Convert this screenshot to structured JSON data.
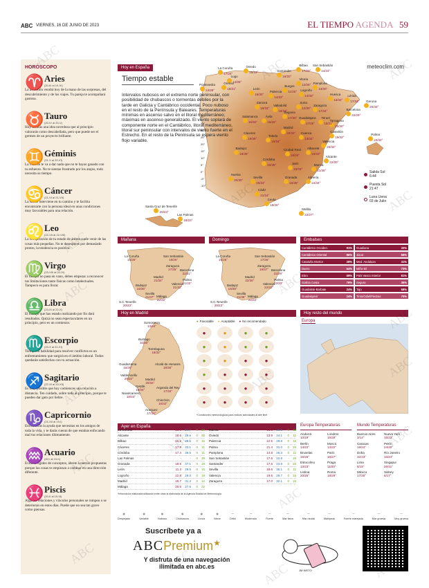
{
  "header": {
    "logo": "ABC",
    "date": "VIERNES, 16 DE JUNIO DE 2023",
    "section": "EL TIEMPO",
    "subsection": "AGENDA",
    "page": "59"
  },
  "horoscope": {
    "title": "HORÓSCOPO",
    "signs": [
      {
        "glyph": "♈",
        "name": "Aries",
        "dates": "(20-III al 19-IV)",
        "text": "La diversión vendrá hoy de la mano de las sorpresas, del descubrimiento y de los viajes. Tu pareja te acompañará gustosa."
      },
      {
        "glyph": "♉",
        "name": "Tauro",
        "dates": "(20-IV al 20-V)",
        "text": "Hoy tendrás una idea novedosa que al principio valorarás como descabellada, pero que puede ser el germen de un proyecto brillante."
      },
      {
        "glyph": "♊",
        "name": "Géminis",
        "dates": "(21-V al 20-VI)",
        "text": "La vida no te va a dar nada que no te hayas ganado con tu esfuerzo. No te sientas frustrado por los atajos, todo necesita su tiempo."
      },
      {
        "glyph": "♋",
        "name": "Cáncer",
        "dates": "(21-VI al 21-VII)",
        "text": "La suerte interviene en tu camino y te facilita encontrarte con la persona ideal en unas condiciones muy favorables para una relación."
      },
      {
        "glyph": "♌",
        "name": "Leo",
        "dates": "(22-VII al 22-VIII)",
        "text": "La recuperación de tu estado de ánimo suele venir de las cosas más pequeñas. No te desesperes por demasiado pronto, la tendencia es positiva."
      },
      {
        "glyph": "♍",
        "name": "Virgo",
        "dates": "(23-VIII al 22-IX)",
        "text": "El tiempo no pasa en vano, debes empezar a reconocer tus limitaciones tanto físicas como intelectuales. Tampoco es para llorar."
      },
      {
        "glyph": "♎",
        "name": "Libra",
        "dates": "(23-IX al 22-X)",
        "text": "El trabajo que has estado realizando por fin dará resultados. Quizá no sean espectaculares en un principio, pero es un comienzo."
      },
      {
        "glyph": "♏",
        "name": "Escorpio",
        "dates": "(23-X al 21-XI)",
        "text": "Tiempo tu habilidad para resolver conflictos es un enfrentamiento que surgirá en el ámbito laboral. Todos quedarán satisfechos con tu actuación."
      },
      {
        "glyph": "♐",
        "name": "Sagitario",
        "dates": "(22-XI al 20-XII)",
        "text": "Es muy posible que hoy comiences una relación a distancia. Ten cuidado, sobre todo al principio, porque te pueden dar gato por liebre."
      },
      {
        "glyph": "♑",
        "name": "Capricornio",
        "dates": "(21-XII al 19-I)",
        "text": "Encontrarás la ayuda que necesitas en los amigos de toda la vida, y te darás cuenta de que estabas enfocando mal tus relaciones últimamente."
      },
      {
        "glyph": "♒",
        "name": "Acuario",
        "dates": "(20-I al 19-II)",
        "text": "Evita la rigidez de conceptos, ábrete a nuevas propuestas porque las cosas te empiezan a caminar en una dirección diferente."
      },
      {
        "glyph": "♓",
        "name": "Piscis",
        "dates": "(20-II al 19-III)",
        "text": "Algunas relaciones y vínculos personales se rompen o se deterioran en estos días. Puede que no sea tan grave como piensas."
      }
    ]
  },
  "today": {
    "label": "Hoy en España",
    "title": "Tiempo estable",
    "desc": "Intervalos nubosos en el extremo norte peninsular, con posibilidad de chubascos o tormentas débiles por la tarde en Galicia y Cantábrico occidental. Poco nuboso en el resto de la Península y Baleares. Temperaturas mínimas en ascenso salvo en el litoral mediterráneo; máximas en ascenso generalizado. El viento soplará de componente norte en el Cantábrico, litoral mediterráneo, litoral sur peninsular con intervalos de viento fuerte en el Estrecho. En el resto de la Península se espera viento flojo variable.",
    "source": "meteoclim.com",
    "scale": [
      "40°",
      "35°",
      "30°",
      "25°",
      "20°",
      "15°",
      "10°",
      "5°",
      "0°",
      "-5°",
      "-10°"
    ],
    "cities": [
      {
        "name": "La Coruña",
        "t": "17/24°"
      },
      {
        "name": "Oviedo",
        "t": "15/19°"
      },
      {
        "name": "Bilbao",
        "t": "17/23°"
      },
      {
        "name": "San Sebastián",
        "t": "14/24°"
      },
      {
        "name": "Santander",
        "t": "16/20°"
      },
      {
        "name": "Lugo",
        "t": "14/26°"
      },
      {
        "name": "Pontevedra",
        "t": "24/28°"
      },
      {
        "name": "Orense",
        "t": "18/31°"
      },
      {
        "name": "León",
        "t": "16/30°"
      },
      {
        "name": "Palencia",
        "t": "14/32°"
      },
      {
        "name": "Burgos",
        "t": "11/30°"
      },
      {
        "name": "Vitoria",
        "t": "12/26°"
      },
      {
        "name": "Logroño",
        "t": "14/30°"
      },
      {
        "name": "Pamplona",
        "t": "13/30°"
      },
      {
        "name": "Huesca",
        "t": "16/34°"
      },
      {
        "name": "Lérida",
        "t": "17/34°"
      },
      {
        "name": "Gerona",
        "t": "20/34°"
      },
      {
        "name": "Zamora",
        "t": "18/32°"
      },
      {
        "name": "Valladolid",
        "t": "18/33°"
      },
      {
        "name": "Soria",
        "t": "12/30°"
      },
      {
        "name": "Zaragoza",
        "t": "17/34°"
      },
      {
        "name": "Barcelona",
        "t": "22/29°"
      },
      {
        "name": "Segovia",
        "t": "17/30°"
      },
      {
        "name": "Tarragona",
        "t": "20/30°"
      },
      {
        "name": "Salamanca",
        "t": "16/32°"
      },
      {
        "name": "Ávila",
        "t": "16/29°"
      },
      {
        "name": "Guadalajara",
        "t": "17/35°"
      },
      {
        "name": "Teruel",
        "t": "15/31°"
      },
      {
        "name": "Madrid",
        "t": "20/34°"
      },
      {
        "name": "Castellón",
        "t": "19/32°"
      },
      {
        "name": "Palma",
        "t": "22/32°"
      },
      {
        "name": "Cáceres",
        "t": "19/36°"
      },
      {
        "name": "Toledo",
        "t": "16/34°"
      },
      {
        "name": "Cuenca",
        "t": "13/32°"
      },
      {
        "name": "Valencia",
        "t": "20/32°"
      },
      {
        "name": "Badajoz",
        "t": "19/35°"
      },
      {
        "name": "Ciudad Real",
        "t": "18/34°"
      },
      {
        "name": "Albacete",
        "t": "15/33°"
      },
      {
        "name": "Alicante",
        "t": "22/30°"
      },
      {
        "name": "Córdoba",
        "t": "22/35°"
      },
      {
        "name": "Jaén",
        "t": "23/33°"
      },
      {
        "name": "Murcia",
        "t": "21/36°"
      },
      {
        "name": "Huelva",
        "t": "20/30°"
      },
      {
        "name": "Sevilla",
        "t": "20/34°"
      },
      {
        "name": "Granada",
        "t": "22/35°"
      },
      {
        "name": "Almería",
        "t": "24/34°"
      },
      {
        "name": "Cádiz",
        "t": "21/24°"
      },
      {
        "name": "Ceuta",
        "t": "18/26°"
      },
      {
        "name": "Melilla",
        "t": "22/27°"
      },
      {
        "name": "Santa Cruz de Tenerife",
        "t": "20/23°"
      },
      {
        "name": "Las Palmas",
        "t": "18/23°"
      }
    ],
    "astro": {
      "sunrise_label": "Salida Sol",
      "sunrise": "6:44",
      "sunset_label": "Puesta Sol",
      "sunset": "21:47",
      "moon_label": "Luna Llena",
      "moon": "03 de Julio"
    }
  },
  "manana": {
    "label": "Mañana",
    "cities": [
      {
        "name": "La Coruña",
        "t": "15/26°"
      },
      {
        "name": "San Sebastián",
        "t": "19/26°"
      },
      {
        "name": "Zaragoza",
        "t": "17/36°"
      },
      {
        "name": "Barcelona",
        "t": "22/31°"
      },
      {
        "name": "Madrid",
        "t": "21/34°"
      },
      {
        "name": "Valencia",
        "t": "21/32°"
      },
      {
        "name": "Palma",
        "t": "21/32°"
      },
      {
        "name": "Badajoz",
        "t": "19/36°"
      },
      {
        "name": "Sevilla",
        "t": "21/37°"
      },
      {
        "name": "Málaga",
        "t": "22/32°"
      },
      {
        "name": "S.C.Tenerife",
        "t": "20/23°"
      }
    ]
  },
  "domingo": {
    "label": "Domingo",
    "cities": [
      {
        "name": "La Coruña",
        "t": "16/26°"
      },
      {
        "name": "San Sebastián",
        "t": "17/26°"
      },
      {
        "name": "Zaragoza",
        "t": "18/37°"
      },
      {
        "name": "Barcelona",
        "t": "22/29°"
      },
      {
        "name": "Madrid",
        "t": "22/36°"
      },
      {
        "name": "Valencia",
        "t": "22/32°"
      },
      {
        "name": "Palma",
        "t": "22/33°"
      },
      {
        "name": "Badajoz",
        "t": "19/38°"
      },
      {
        "name": "Sevilla",
        "t": "21/38°"
      },
      {
        "name": "Málaga",
        "t": "22/34°"
      },
      {
        "name": "S.C.Tenerife",
        "t": "20/23°"
      }
    ]
  },
  "embalses": {
    "label": "Embalses",
    "rows": [
      {
        "name": "Cantábrico Occiden.",
        "pct": "91%"
      },
      {
        "name": "Guadiana",
        "pct": "33%"
      },
      {
        "name": "Cantábrico Oriental",
        "pct": "86%"
      },
      {
        "name": "Júcar",
        "pct": "58%"
      },
      {
        "name": "Cataluña Interior",
        "pct": "28%"
      },
      {
        "name": "Med. Andaluza",
        "pct": "31%"
      },
      {
        "name": "Duero",
        "pct": "64%"
      },
      {
        "name": "Miño-Sil",
        "pct": "73%"
      },
      {
        "name": "Ebro",
        "pct": "59%"
      },
      {
        "name": "País Vasco Interior",
        "pct": "81%"
      },
      {
        "name": "Galicia Costa",
        "pct": "79%"
      },
      {
        "name": "Segura",
        "pct": "36%"
      },
      {
        "name": "Guadalete-Barbate",
        "pct": "24%"
      },
      {
        "name": "Tajo",
        "pct": "58%"
      },
      {
        "name": "Guadalquivir",
        "pct": "24%"
      },
      {
        "name": "Tinto/Odiel/Piedras",
        "pct": "70%"
      }
    ]
  },
  "madrid": {
    "label": "Hoy en Madrid",
    "legend": {
      "fav": "Favorable",
      "acc": "Aceptable",
      "no": "No recomendado"
    },
    "cities": [
      {
        "name": "Somosierra",
        "t": "13/24°"
      },
      {
        "name": "Buitrago",
        "t": "16/30°"
      },
      {
        "name": "Torrelaguna",
        "t": "18/32°"
      },
      {
        "name": "Guadarrama",
        "t": "16/30°"
      },
      {
        "name": "Alcalá de Henares",
        "t": "18/35°"
      },
      {
        "name": "Valdemorillo",
        "t": "20/32°"
      },
      {
        "name": "Madrid",
        "t": "20/34°"
      },
      {
        "name": "Getafe",
        "t": "19/34°"
      },
      {
        "name": "Arganda del Rey",
        "t": "17/34°"
      },
      {
        "name": "Navalcarnero",
        "t": "18/34°"
      },
      {
        "name": "Chinchón",
        "t": "16/32°"
      },
      {
        "name": "Aranjuez",
        "t": "17/34°"
      }
    ],
    "activities": [
      "a",
      "y",
      "g",
      "g",
      "g",
      "y",
      "g",
      "g",
      "g",
      "y",
      "n",
      "n",
      "g",
      "a",
      "a",
      "a",
      "a",
      "a",
      "a",
      "a",
      "n",
      "a",
      "a",
      "n"
    ],
    "note": "*Condiciones meteorológicas para realizar actividades al aire libre"
  },
  "world": {
    "label": "Hoy resto del mundo",
    "sub": "Europa"
  },
  "ayer": {
    "label": "Ayer en España",
    "head": [
      "ºC Máx",
      "ºC Mín",
      "Lluvia l/m²",
      "Racha Viento"
    ],
    "left": [
      {
        "c": "La Coruña",
        "mx": "16.0",
        "mn": "24.7",
        "r": "0",
        "w": "19"
      },
      {
        "c": "Alicante",
        "mx": "18.6",
        "mn": "29.6",
        "r": "0",
        "w": "30"
      },
      {
        "c": "Bilbao",
        "mx": "16.2",
        "mn": "25.6",
        "r": "0",
        "w": "15"
      },
      {
        "c": "Cáceres",
        "mx": "17.8",
        "mn": "33.1",
        "r": "0",
        "w": "11"
      },
      {
        "c": "Córdoba",
        "mx": "17.4",
        "mn": "36.5",
        "r": "0",
        "w": "11"
      },
      {
        "c": "Las Palmas",
        "mx": "-",
        "mn": "-",
        "r": "0",
        "w": "39"
      },
      {
        "c": "Granada",
        "mx": "18.5",
        "mn": "37.1",
        "r": "0",
        "w": "19"
      },
      {
        "c": "León",
        "mx": "11.3",
        "mn": "29.5",
        "r": "0",
        "w": "15"
      },
      {
        "c": "Logroño",
        "mx": "12.8",
        "mn": "29.0",
        "r": "0",
        "w": "19"
      },
      {
        "c": "Madrid",
        "mx": "15.7",
        "mn": "31.3",
        "r": "0",
        "w": "12"
      },
      {
        "c": "Málaga",
        "mx": "20.5",
        "mn": "27.6",
        "r": "0",
        "w": "22"
      }
    ],
    "right": [
      {
        "c": "Murcia",
        "mx": "16.5",
        "mn": "34.5",
        "r": "0",
        "w": "11"
      },
      {
        "c": "Oviedo",
        "mx": "13.9",
        "mn": "24.1",
        "r": "0",
        "w": "11"
      },
      {
        "c": "Palencia",
        "mx": "12.5",
        "mn": "29.8",
        "r": "0",
        "w": "15"
      },
      {
        "c": "Palma",
        "mx": "21.4",
        "mn": "31.0",
        "r": "0",
        "w": "15"
      },
      {
        "c": "Pamplona",
        "mx": "14.8",
        "mn": "26.3",
        "r": "0",
        "w": "11"
      },
      {
        "c": "San Sebastián",
        "mx": "17.6",
        "mn": "22.8",
        "r": "-",
        "w": "16"
      },
      {
        "c": "Santander",
        "mx": "17.6",
        "mn": "23.8",
        "r": "0",
        "w": "16"
      },
      {
        "c": "Sevilla",
        "mx": "18.6",
        "mn": "36.1",
        "r": "0",
        "w": "11"
      },
      {
        "c": "Valencia",
        "mx": "19.6",
        "mn": "29.7",
        "r": "0",
        "w": "15"
      },
      {
        "c": "Zaragoza",
        "mx": "17.0",
        "mn": "32.1",
        "r": "0",
        "w": "15"
      }
    ],
    "foot": "*Información elaborada utilizando entre otras la elaborada de la Agencia Estatal de Meteorología"
  },
  "europa": {
    "title": "Europa Temperaturas",
    "cities": [
      {
        "c": "Andorra",
        "t": "10/19°"
      },
      {
        "c": "Londres",
        "t": "15/28°"
      },
      {
        "c": "Berlín",
        "t": "14/22°"
      },
      {
        "c": "Moscú",
        "t": "14/22°"
      },
      {
        "c": "Bruselas",
        "t": "15/26°"
      },
      {
        "c": "París",
        "t": "16/27°"
      },
      {
        "c": "Estocolmo",
        "t": "13/23°"
      },
      {
        "c": "Praga",
        "t": "11/20°"
      },
      {
        "c": "Lisboa",
        "t": "20/26°"
      },
      {
        "c": "Roma",
        "t": "18/29°"
      }
    ]
  },
  "mundo": {
    "title": "Mundo Temperaturas",
    "cities": [
      {
        "c": "Buenos Aires",
        "t": "3/14°"
      },
      {
        "c": "Nueva York",
        "t": "15/23°"
      },
      {
        "c": "Caracas",
        "t": "19/24°"
      },
      {
        "c": "Pekín",
        "t": "24/40°"
      },
      {
        "c": "Doha",
        "t": "32/43°"
      },
      {
        "c": "Río Janeiro",
        "t": "16/24°"
      },
      {
        "c": "Lima",
        "t": "8/19°"
      },
      {
        "c": "Singapur",
        "t": "26/31°"
      },
      {
        "c": "México",
        "t": "17/30°"
      },
      {
        "c": "Sidney",
        "t": "6/17°"
      }
    ]
  },
  "icon_legend": [
    "Despejado",
    "Variable",
    "Nuboso",
    "Chubascos",
    "Lluvia",
    "Nieve",
    "Débil",
    "Moderado",
    "Fuerte",
    "Mar llana",
    "Mar rizada",
    "Marejada",
    "Fuerte marejada",
    "Mar gruesa",
    "Muy gruesa"
  ],
  "promo": {
    "line1": "Suscríbete ya a",
    "brand_abc": "ABC",
    "brand_premium": "Premium",
    "line3": "Y disfruta de una navegación ilimitada en abc.es",
    "credit": "JM NIETO"
  },
  "watermark": "ABC"
}
